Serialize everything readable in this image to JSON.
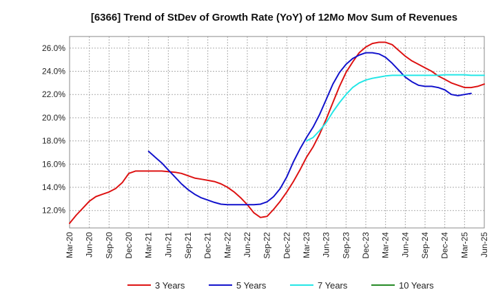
{
  "chart_data": {
    "type": "line",
    "title": "[6366]  Trend of StDev of Growth Rate (YoY) of 12Mo Mov Sum of Revenues",
    "xlabel": "",
    "ylabel": "",
    "ylim": [
      10.5,
      27.0
    ],
    "y_ticks": [
      12.0,
      14.0,
      16.0,
      18.0,
      20.0,
      22.0,
      24.0,
      26.0
    ],
    "y_tick_labels": [
      "12.0%",
      "14.0%",
      "16.0%",
      "18.0%",
      "20.0%",
      "22.0%",
      "24.0%",
      "26.0%"
    ],
    "x_tick_labels": [
      "Mar-20",
      "Jun-20",
      "Sep-20",
      "Dec-20",
      "Mar-21",
      "Jun-21",
      "Sep-21",
      "Dec-21",
      "Mar-22",
      "Jun-22",
      "Sep-22",
      "Dec-22",
      "Mar-23",
      "Jun-23",
      "Sep-23",
      "Dec-23",
      "Mar-24",
      "Jun-24",
      "Sep-24",
      "Dec-24",
      "Mar-25",
      "Jun-25"
    ],
    "grid": true,
    "legend_position": "bottom",
    "x_start_label": "Mar-20",
    "series": [
      {
        "name": "3 Years",
        "color": "#dd1111",
        "start_index": 0,
        "values": [
          10.9,
          11.6,
          12.2,
          12.8,
          13.2,
          13.4,
          13.6,
          13.9,
          14.4,
          15.2,
          15.4,
          15.4,
          15.4,
          15.4,
          15.4,
          15.35,
          15.3,
          15.2,
          15.0,
          14.8,
          14.7,
          14.6,
          14.5,
          14.3,
          14.0,
          13.6,
          13.1,
          12.5,
          11.8,
          11.4,
          11.5,
          12.1,
          12.8,
          13.6,
          14.5,
          15.5,
          16.6,
          17.5,
          18.6,
          19.9,
          21.3,
          22.7,
          23.9,
          24.8,
          25.6,
          26.1,
          26.4,
          26.5,
          26.5,
          26.3,
          25.8,
          25.3,
          24.9,
          24.6,
          24.3,
          24.0,
          23.6,
          23.3,
          23.0,
          22.8,
          22.6,
          22.6,
          22.7,
          22.9
        ]
      },
      {
        "name": "5 Years",
        "color": "#1111cc",
        "start_index": 12,
        "values": [
          17.1,
          16.6,
          16.1,
          15.5,
          14.9,
          14.3,
          13.8,
          13.4,
          13.1,
          12.9,
          12.7,
          12.55,
          12.5,
          12.5,
          12.5,
          12.5,
          12.5,
          12.55,
          12.75,
          13.2,
          13.9,
          14.9,
          16.2,
          17.3,
          18.3,
          19.2,
          20.3,
          21.6,
          22.9,
          23.9,
          24.6,
          25.1,
          25.4,
          25.6,
          25.6,
          25.5,
          25.2,
          24.7,
          24.1,
          23.5,
          23.1,
          22.8,
          22.7,
          22.7,
          22.6,
          22.4,
          22.0,
          21.9,
          22.0,
          22.1
        ]
      },
      {
        "name": "7 Years",
        "color": "#22e6e6",
        "start_index": 36,
        "values": [
          18.0,
          18.3,
          18.9,
          19.6,
          20.5,
          21.3,
          22.0,
          22.6,
          23.0,
          23.25,
          23.4,
          23.5,
          23.6,
          23.65,
          23.65,
          23.65,
          23.65,
          23.65,
          23.65,
          23.65,
          23.65,
          23.7,
          23.7,
          23.7,
          23.7,
          23.65,
          23.65,
          23.65
        ]
      },
      {
        "name": "10 Years",
        "color": "#228822",
        "start_index": 0,
        "values": []
      }
    ]
  }
}
